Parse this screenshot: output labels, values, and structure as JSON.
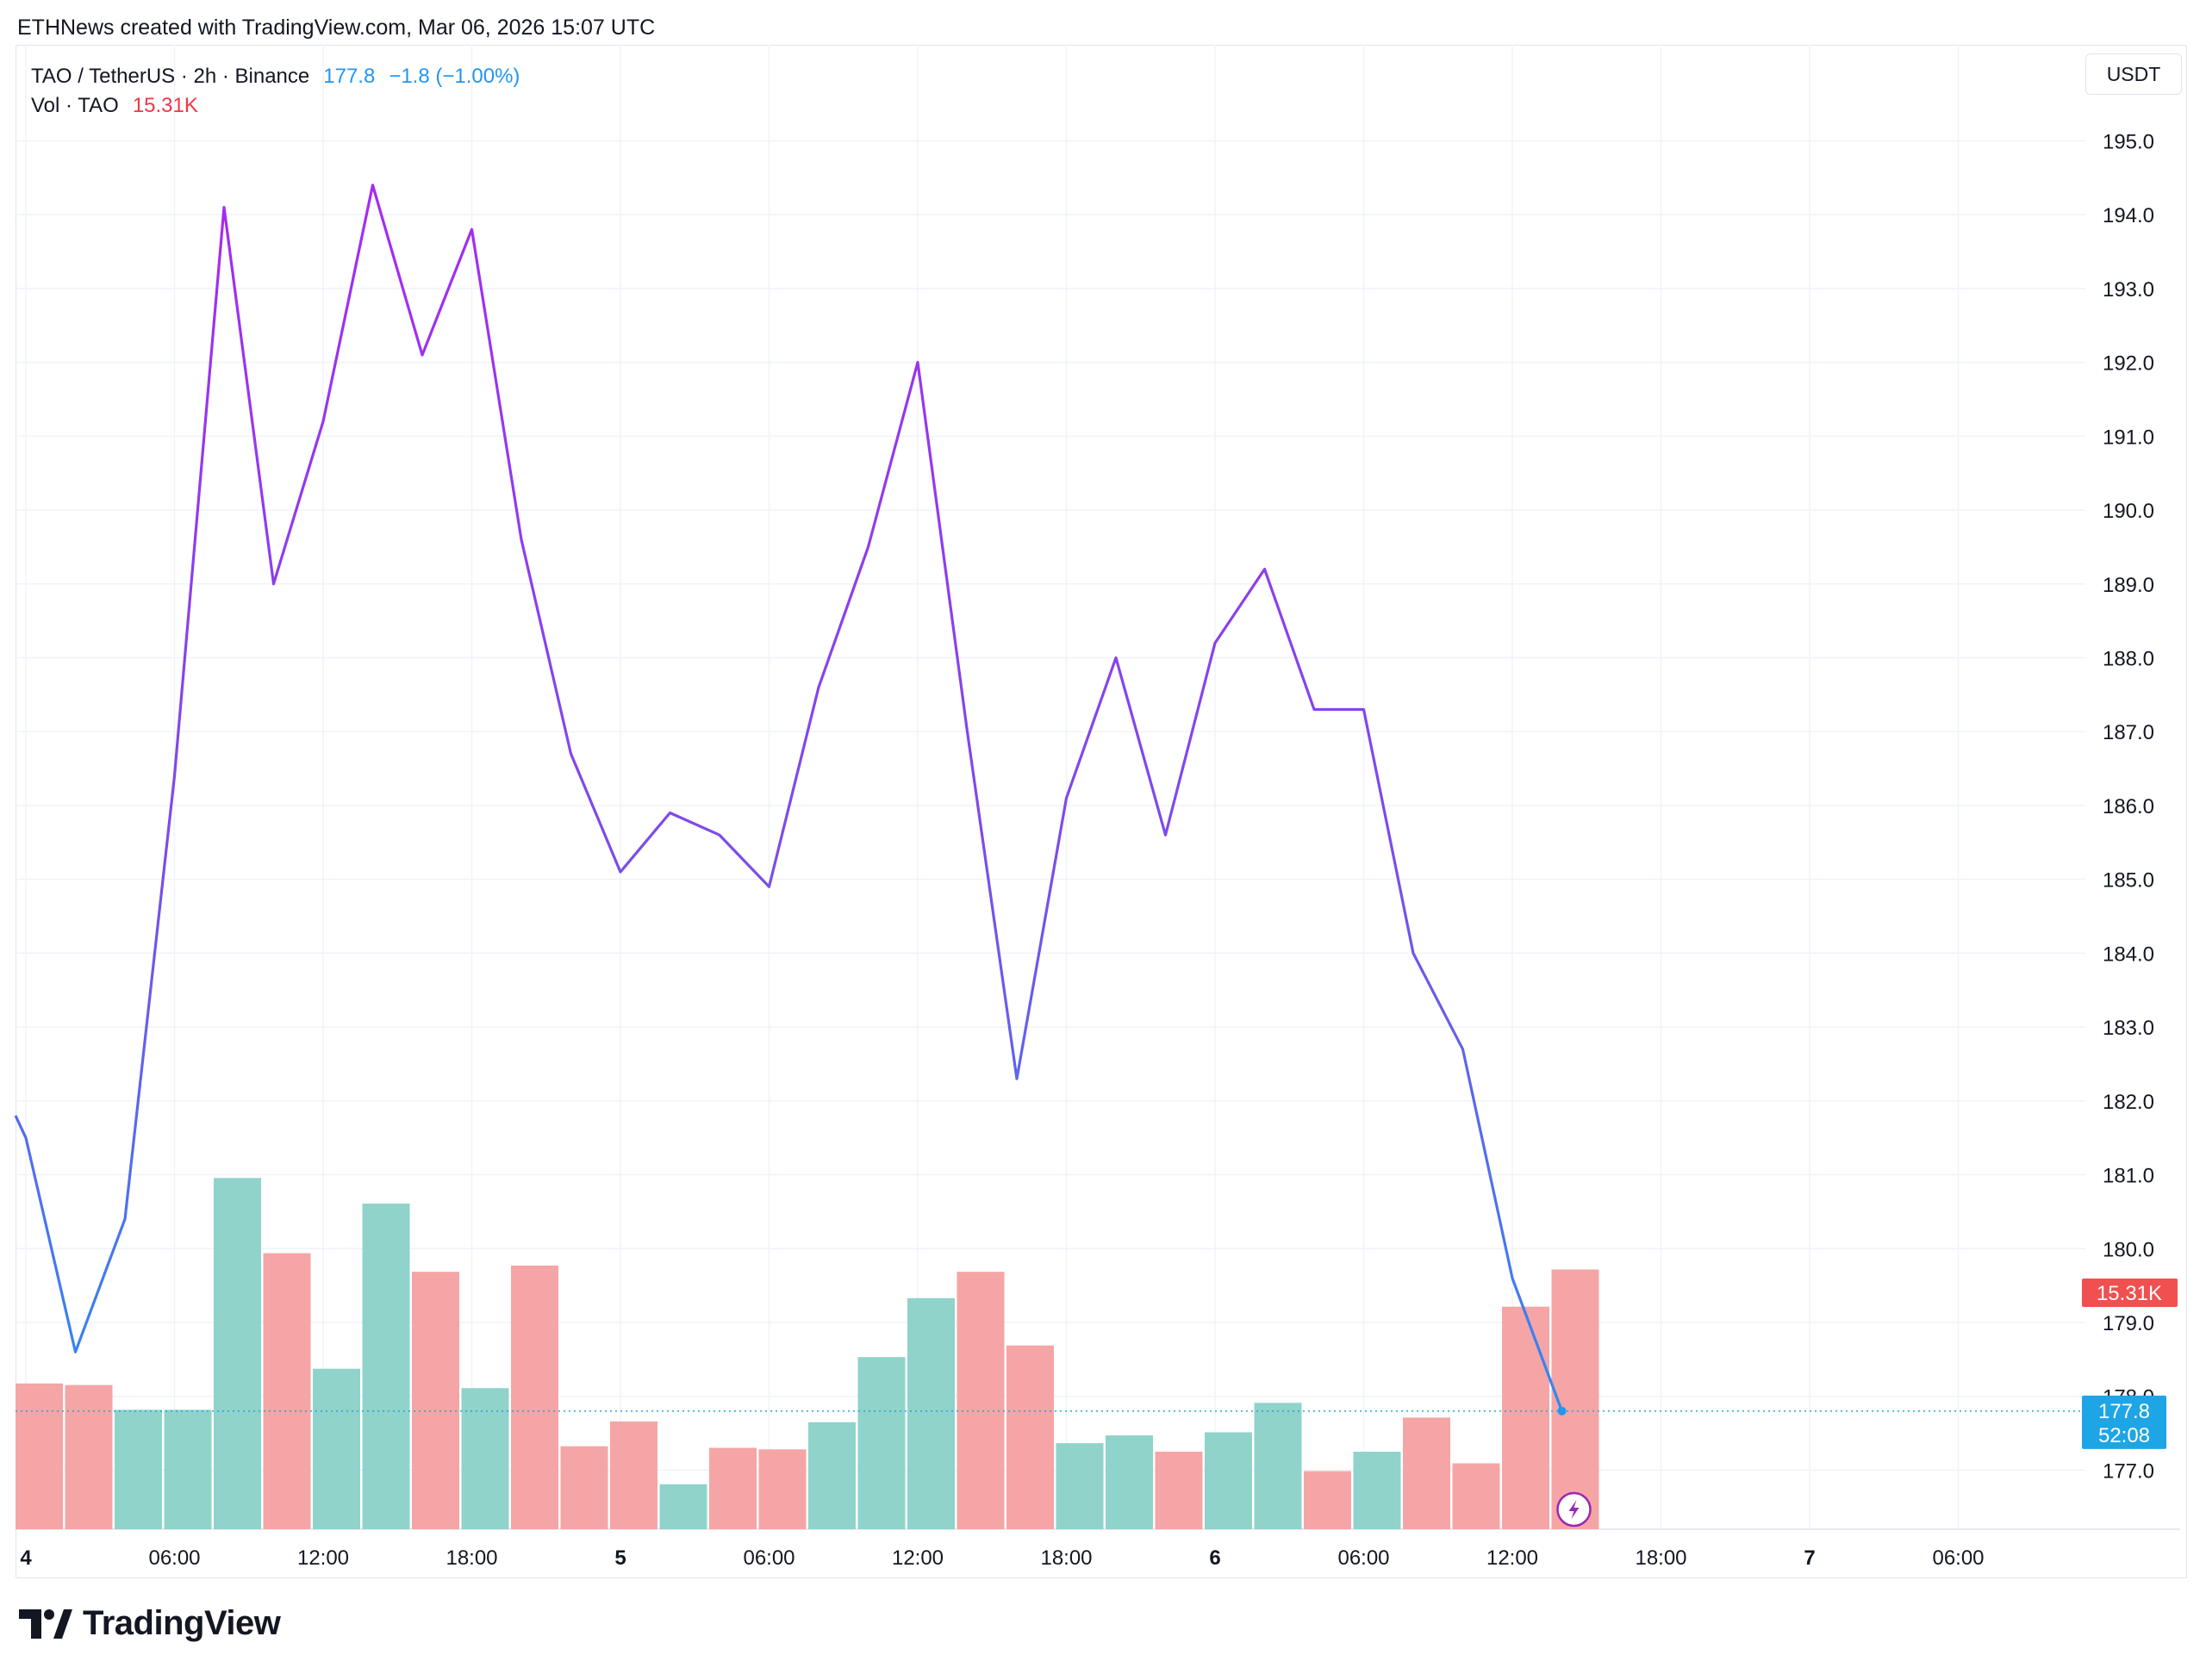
{
  "header": {
    "credit": "ETHNews created with TradingView.com, Mar 06, 2026 15:07 UTC"
  },
  "legend": {
    "symbol": "TAO / TetherUS · 2h · Binance",
    "last_price": "177.8",
    "change": "−1.8 (−1.00%)",
    "volume_label": "Vol · TAO",
    "volume_value": "15.31K"
  },
  "currency_button": "USDT",
  "price_tag": {
    "price": "177.8",
    "countdown": "52:08"
  },
  "volume_tag": "15.31K",
  "logo": {
    "text": "TradingView"
  },
  "colors": {
    "line_low": "#2196f3",
    "line_high": "#b022f5",
    "volume_up": "#8fd3cb",
    "volume_down": "#f5a5a5",
    "price_tag": "#1ea5e6",
    "volume_tag": "#f05050",
    "grid": "#f0f3fa"
  },
  "chart_data": {
    "type": "line",
    "title": "TAO / TetherUS · 2h · Binance",
    "y_axis": {
      "label": "USDT",
      "ylim": [
        176.2,
        196.3
      ],
      "ticks": [
        "177.0",
        "178.0",
        "179.0",
        "180.0",
        "181.0",
        "182.0",
        "183.0",
        "184.0",
        "185.0",
        "186.0",
        "187.0",
        "188.0",
        "189.0",
        "190.0",
        "191.0",
        "192.0",
        "193.0",
        "194.0",
        "195.0"
      ]
    },
    "x_axis": {
      "ticks": [
        {
          "label": "4",
          "bold": true
        },
        {
          "label": "06:00"
        },
        {
          "label": "12:00"
        },
        {
          "label": "18:00"
        },
        {
          "label": "5",
          "bold": true
        },
        {
          "label": "06:00"
        },
        {
          "label": "12:00"
        },
        {
          "label": "18:00"
        },
        {
          "label": "6",
          "bold": true
        },
        {
          "label": "06:00"
        },
        {
          "label": "12:00"
        },
        {
          "label": "18:00"
        },
        {
          "label": "7",
          "bold": true
        },
        {
          "label": "06:00"
        }
      ]
    },
    "series": [
      {
        "x": [
          "Mar 4 00:00",
          "Mar 4 02:00",
          "Mar 4 04:00",
          "Mar 4 06:00",
          "Mar 4 08:00",
          "Mar 4 10:00",
          "Mar 4 12:00",
          "Mar 4 14:00",
          "Mar 4 16:00",
          "Mar 4 18:00",
          "Mar 4 20:00",
          "Mar 4 22:00",
          "Mar 5 00:00",
          "Mar 5 02:00",
          "Mar 5 04:00",
          "Mar 5 06:00",
          "Mar 5 08:00",
          "Mar 5 10:00",
          "Mar 5 12:00",
          "Mar 5 14:00",
          "Mar 5 16:00",
          "Mar 5 18:00",
          "Mar 5 20:00",
          "Mar 5 22:00",
          "Mar 6 00:00",
          "Mar 6 02:00",
          "Mar 6 04:00",
          "Mar 6 06:00",
          "Mar 6 08:00",
          "Mar 6 10:00",
          "Mar 6 12:00",
          "Mar 6 14:00"
        ],
        "values": [
          181.5,
          178.6,
          180.4,
          186.4,
          194.1,
          189.0,
          191.2,
          194.4,
          192.1,
          193.8,
          189.6,
          186.7,
          185.1,
          185.9,
          185.6,
          184.9,
          187.6,
          189.5,
          192.0,
          187.0,
          182.3,
          186.1,
          188.0,
          185.6,
          188.2,
          189.2,
          187.3,
          187.3,
          184.0,
          182.7,
          179.6,
          177.8
        ]
      }
    ],
    "volume": {
      "label": "Vol · TAO",
      "values": [
        1.88,
        1.86,
        1.54,
        1.54,
        4.53,
        3.56,
        2.07,
        4.2,
        3.32,
        1.82,
        3.4,
        1.07,
        1.39,
        0.58,
        1.05,
        1.03,
        1.38,
        2.22,
        2.98,
        3.32,
        2.37,
        1.11,
        1.21,
        1.0,
        1.25,
        1.63,
        0.75,
        1.0,
        1.44,
        0.85,
        2.87,
        3.35
      ],
      "direction": [
        "down",
        "down",
        "up",
        "up",
        "up",
        "down",
        "up",
        "up",
        "down",
        "up",
        "down",
        "down",
        "down",
        "up",
        "down",
        "down",
        "up",
        "up",
        "up",
        "down",
        "down",
        "up",
        "up",
        "down",
        "up",
        "up",
        "down",
        "up",
        "down",
        "down",
        "down",
        "down"
      ]
    }
  }
}
